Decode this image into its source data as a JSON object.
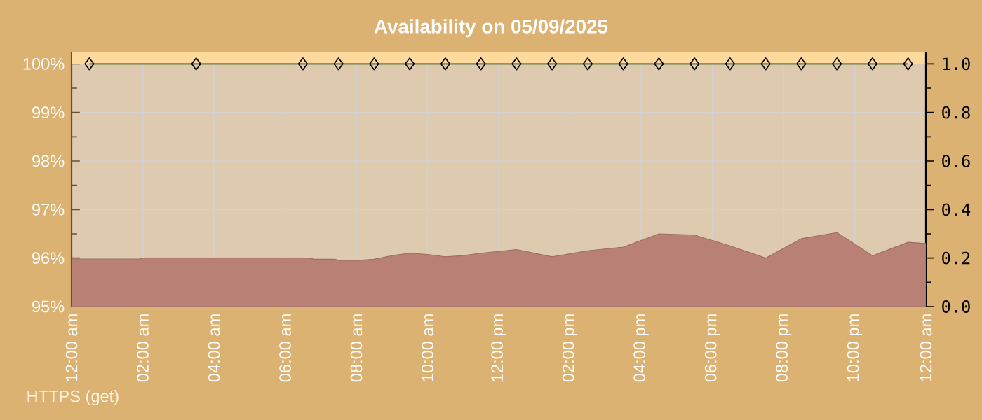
{
  "chart_data": {
    "type": "area",
    "title": "Availability on 05/09/2025",
    "xlim": [
      0,
      24
    ],
    "xticks": [
      {
        "value": 0,
        "label": "12:00 am"
      },
      {
        "value": 2,
        "label": "02:00 am"
      },
      {
        "value": 4,
        "label": "04:00 am"
      },
      {
        "value": 6,
        "label": "06:00 am"
      },
      {
        "value": 8,
        "label": "08:00 am"
      },
      {
        "value": 10,
        "label": "10:00 am"
      },
      {
        "value": 12,
        "label": "12:00 pm"
      },
      {
        "value": 14,
        "label": "02:00 pm"
      },
      {
        "value": 16,
        "label": "04:00 pm"
      },
      {
        "value": 18,
        "label": "06:00 pm"
      },
      {
        "value": 20,
        "label": "08:00 pm"
      },
      {
        "value": 22,
        "label": "10:00 pm"
      },
      {
        "value": 24,
        "label": "12:00 am"
      }
    ],
    "ylim": [
      95,
      100.25
    ],
    "yticks": [
      {
        "value": 95,
        "label": "95%"
      },
      {
        "value": 96,
        "label": "96%"
      },
      {
        "value": 97,
        "label": "97%"
      },
      {
        "value": 98,
        "label": "98%"
      },
      {
        "value": 99,
        "label": "99%"
      },
      {
        "value": 100,
        "label": "100%"
      }
    ],
    "y2lim": [
      0,
      1.05
    ],
    "y2ticks": [
      {
        "value": 0,
        "label": "0.0"
      },
      {
        "value": 0.2,
        "label": "0.2"
      },
      {
        "value": 0.4,
        "label": "0.4"
      },
      {
        "value": 0.6,
        "label": "0.6"
      },
      {
        "value": 0.8,
        "label": "0.8"
      },
      {
        "value": 1.0,
        "label": "1.0"
      }
    ],
    "grid": true,
    "bands": [
      {
        "axis": "y",
        "from": 100,
        "to": 100.25,
        "color": "#fdd99b"
      }
    ],
    "series": [
      {
        "axis": "y2",
        "color": "#b98076",
        "x": [
          0,
          1.9,
          2,
          6.7,
          6.8,
          7.4,
          7.5,
          8,
          8.5,
          9,
          9.5,
          10,
          10.5,
          11,
          11.5,
          12.5,
          13.5,
          14.5,
          15.5,
          16.5,
          17.5,
          18.5,
          19.5,
          20.5,
          21.5,
          22.5,
          23.5,
          24
        ],
        "values": [
          0.196,
          0.196,
          0.2,
          0.2,
          0.195,
          0.195,
          0.19,
          0.19,
          0.195,
          0.21,
          0.22,
          0.215,
          0.205,
          0.21,
          0.22,
          0.235,
          0.205,
          0.23,
          0.245,
          0.3,
          0.295,
          0.25,
          0.2,
          0.28,
          0.305,
          0.21,
          0.265,
          0.26
        ]
      },
      {
        "type": "line",
        "axis": "y",
        "color": "#6b7a3f",
        "marker": "diamond",
        "x": [
          0.5,
          3.5,
          6.5,
          7.5,
          8.5,
          9.5,
          10.5,
          11.5,
          12.5,
          13.5,
          14.5,
          15.5,
          16.5,
          17.5,
          18.5,
          19.5,
          20.5,
          21.5,
          22.5,
          23.5
        ],
        "values": [
          100,
          100,
          100,
          100,
          100,
          100,
          100,
          100,
          100,
          100,
          100,
          100,
          100,
          100,
          100,
          100,
          100,
          100,
          100,
          100
        ]
      }
    ],
    "annotations": [
      "HTTPS (get)"
    ]
  }
}
